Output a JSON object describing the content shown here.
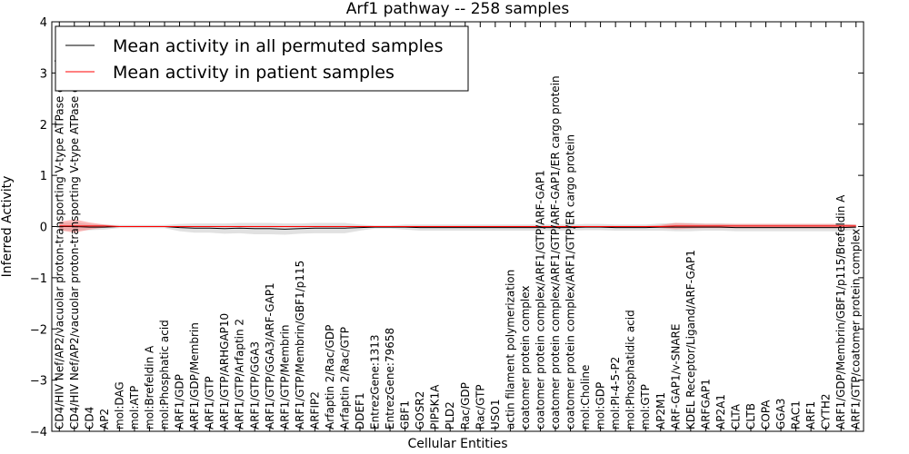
{
  "chart_data": {
    "type": "line",
    "title": "Arf1 pathway -- 258 samples",
    "xlabel": "Cellular Entities",
    "ylabel": "Inferred Activity",
    "ylim": [
      -4,
      4
    ],
    "yticks": [
      -4,
      -3,
      -2,
      -1,
      0,
      1,
      2,
      3,
      4
    ],
    "grid": false,
    "legend_position": "top-left",
    "categories": [
      "CD4/HIV Nef/AP2/vacuolar proton-transporting V-type ATPase complex",
      "CD4/HIV Nef/AP2/vacuolar proton-transporting V-type ATPase complex",
      "CD4",
      "AP2",
      "mol:DAG",
      "mol:ATP",
      "mol:Brefeldin A",
      "mol:Phosphatic acid",
      "ARF1/GDP",
      "ARF1/GDP/Membrin",
      "ARF1/GTP",
      "ARF1/GTP/ARHGAP10",
      "ARF1/GTP/Arfaptin 2",
      "ARF1/GTP/GGA3",
      "ARF1/GTP/GGA3/ARF-GAP1",
      "ARF1/GTP/Membrin",
      "ARF1/GTP/Membrin/GBF1/p115",
      "ARFIP2",
      "Arfaptin 2/Rac/GDP",
      "Arfaptin 2/Rac/GTP",
      "DDEF1",
      "EntrezGene:1313",
      "EntrezGene:79658",
      "GBF1",
      "GOSR2",
      "PIP5K1A",
      "PLD2",
      "Rac/GDP",
      "Rac/GTP",
      "USO1",
      "actin filament polymerization",
      "coatomer protein complex",
      "coatomer protein complex/ARF1/GTP/ARF-GAP1",
      "coatomer protein complex/ARF1/GTP/ARF-GAP1/ER cargo protein",
      "coatomer protein complex/ARF1/GTP/ER cargo protein",
      "mol:Choline",
      "mol:GDP",
      "mol:PI-4-5-P2",
      "mol:Phosphatidic acid",
      "mol:GTP",
      "AP2M1",
      "ARF-GAP1/v-SNARE",
      "KDEL Receptor/Ligand/ARF-GAP1",
      "ARFGAP1",
      "AP2A1",
      "CLTA",
      "CLTB",
      "COPA",
      "GGA3",
      "RAC1",
      "ARF1",
      "CYTH2",
      "ARF1/GDP/Membrin/GBF1/p115/Brefeldin A",
      "ARF1/GTP/coatomer protein complex"
    ],
    "series": [
      {
        "name": "Mean activity in all permuted samples",
        "color": "#000000",
        "values": [
          0,
          0,
          -0.01,
          -0.01,
          0,
          0,
          0,
          0,
          -0.02,
          -0.03,
          -0.03,
          -0.04,
          -0.03,
          -0.04,
          -0.04,
          -0.05,
          -0.04,
          -0.03,
          -0.03,
          -0.03,
          -0.02,
          -0.01,
          -0.01,
          -0.01,
          -0.02,
          -0.02,
          -0.02,
          -0.02,
          -0.02,
          -0.02,
          -0.02,
          -0.02,
          -0.02,
          -0.02,
          -0.02,
          -0.01,
          -0.01,
          -0.02,
          -0.02,
          -0.02,
          -0.01,
          -0.01,
          -0.01,
          -0.01,
          -0.01,
          -0.02,
          -0.02,
          -0.02,
          -0.02,
          -0.02,
          -0.02,
          -0.02,
          -0.02,
          -0.01
        ],
        "band": [
          0.08,
          0.08,
          0.06,
          0.05,
          0.03,
          0.03,
          0.03,
          0.03,
          0.07,
          0.09,
          0.09,
          0.1,
          0.1,
          0.11,
          0.11,
          0.11,
          0.1,
          0.1,
          0.1,
          0.1,
          0.06,
          0.03,
          0.03,
          0.05,
          0.06,
          0.06,
          0.06,
          0.06,
          0.06,
          0.06,
          0.06,
          0.06,
          0.06,
          0.06,
          0.06,
          0.06,
          0.06,
          0.06,
          0.06,
          0.06,
          0.07,
          0.08,
          0.08,
          0.07,
          0.07,
          0.07,
          0.07,
          0.07,
          0.07,
          0.07,
          0.07,
          0.07,
          0.07,
          0.05
        ]
      },
      {
        "name": "Mean activity in patient samples",
        "color": "#ff0000",
        "values": [
          0.01,
          0.01,
          0.01,
          0.01,
          0,
          0,
          0,
          0,
          0,
          0,
          0,
          0,
          0,
          0,
          0,
          0,
          0,
          0,
          0,
          0,
          0,
          0,
          0,
          0,
          0,
          0,
          0,
          0,
          0,
          0,
          0,
          0,
          0,
          0,
          0,
          0,
          0,
          0,
          0,
          0,
          0,
          0.01,
          0.01,
          0.01,
          0.01,
          0.01,
          0.01,
          0.01,
          0.01,
          0.01,
          0.01,
          0.01,
          0.01,
          0.01
        ],
        "band": [
          0.08,
          0.13,
          0.07,
          0.03,
          0.01,
          0.01,
          0.01,
          0.01,
          0.01,
          0.01,
          0.01,
          0.01,
          0.01,
          0.01,
          0.01,
          0.01,
          0.01,
          0.01,
          0.01,
          0.01,
          0.01,
          0.01,
          0.01,
          0.01,
          0.01,
          0.01,
          0.01,
          0.01,
          0.01,
          0.01,
          0.01,
          0.01,
          0.01,
          0.01,
          0.01,
          0.01,
          0.01,
          0.01,
          0.01,
          0.01,
          0.03,
          0.06,
          0.05,
          0.04,
          0.04,
          0.04,
          0.04,
          0.04,
          0.04,
          0.04,
          0.04,
          0.04,
          0.04,
          0.03
        ]
      }
    ]
  }
}
